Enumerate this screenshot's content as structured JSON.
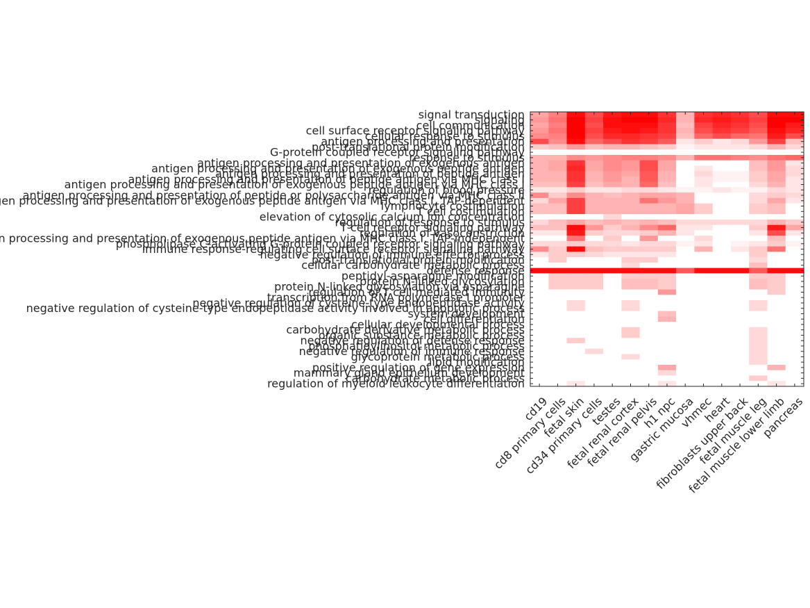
{
  "chart_data": {
    "type": "heatmap",
    "title": "",
    "xlabel": "",
    "ylabel": "",
    "color_low": "#ffffff",
    "color_high": "#ff0000",
    "value_range": [
      0,
      1
    ],
    "columns": [
      "cd19",
      "cd8 primary cells",
      "fetal skin",
      "cd34 primary cells",
      "testes",
      "fetal renal cortex",
      "fetal renal pelvis",
      "h1 npc",
      "gastric mucosa",
      "vhmec",
      "heart",
      "fibroblasts upper back",
      "fetal muscle leg",
      "fetal muscle lower limb",
      "pancreas"
    ],
    "rows": [
      "signal transduction",
      "signaling",
      "cell communication",
      "cell surface receptor signaling pathway",
      "cellular response to stimulus",
      "antigen processing and presentation",
      "post-translational protein modification",
      "G-protein coupled receptor signaling pathway",
      "response to stimulus",
      "antigen processing and presentation of exogenous antigen",
      "antigen processing and presentation of exogenous peptide antigen",
      "antigen processing and presentation of peptide antigen",
      "antigen processing and presentation of peptide antigen via MHC class I",
      "antigen processing and presentation of exogenous peptide antigen via MHC class I",
      "regulation of blood pressure",
      "antigen processing and presentation of peptide or polysaccharide antigen via MHC class II",
      "antigen processing and presentation of exogenous peptide antigen via MHC class I, TAP-dependent",
      "lymphocyte costimulation",
      "T cell costimulation",
      "elevation of cytosolic calcium ion concentration",
      "regulation of response to stimulus",
      "T cell receptor signaling pathway",
      "regulation of vasoconstriction",
      "antigen processing and presentation of exogenous peptide antigen via MHC class I, TAP-independent",
      "phospholipase C-activating G-protein coupled receptor signaling pathway",
      "immune response-regulating cell surface receptor signaling pathway",
      "negative regulation of immune effector process",
      "post-translational protein modification",
      "cellular carbohydrate metabolic process",
      "defense response",
      "peptidyl-asparagine modification",
      "protein N-linked glycosylation",
      "protein N-linked glycosylation via asparagine",
      "regulation of T cell mediated immunity",
      "transcription from RNA polymerase I promoter",
      "negative regulation of cysteine-type endopeptidase activity",
      "negative regulation of cysteine-type endopeptidase activity involved in apoptotic process",
      "system development",
      "cell differentiation",
      "cellular developmental process",
      "carbohydrate derivative metabolic process",
      "organic substance metabolic process",
      "negative regulation of defense response",
      "phosphatidylinositol metabolic process",
      "negative regulation of immune response",
      "glycoprotein metabolic process",
      "lipid modification",
      "positive regulation of gene expression",
      "mammary gland epithelium development",
      "carbohydrate metabolic process",
      "regulation of myeloid leukocyte differentiation"
    ],
    "values": [
      [
        0.35,
        0.5,
        0.95,
        0.7,
        0.9,
        0.95,
        0.95,
        0.8,
        0.3,
        0.8,
        0.85,
        0.8,
        0.7,
        0.95,
        0.95
      ],
      [
        0.4,
        0.55,
        1.0,
        0.75,
        0.95,
        1.0,
        1.0,
        0.85,
        0.3,
        0.85,
        0.9,
        0.85,
        0.75,
        1.0,
        1.0
      ],
      [
        0.35,
        0.5,
        1.0,
        0.7,
        0.95,
        0.95,
        0.95,
        0.8,
        0.25,
        0.75,
        0.85,
        0.8,
        0.7,
        1.0,
        0.9
      ],
      [
        0.4,
        0.55,
        1.0,
        0.75,
        0.9,
        0.95,
        0.9,
        0.8,
        0.3,
        0.7,
        0.8,
        0.75,
        0.65,
        0.95,
        0.85
      ],
      [
        0.45,
        0.5,
        1.0,
        0.7,
        0.85,
        0.85,
        0.8,
        0.75,
        0.25,
        0.6,
        0.7,
        0.6,
        0.55,
        0.9,
        0.7
      ],
      [
        0.7,
        0.45,
        0.95,
        0.6,
        0.7,
        0.8,
        0.75,
        0.65,
        0.1,
        0.2,
        0.1,
        0.15,
        0.4,
        0.75,
        0.25
      ],
      [
        0.2,
        0.25,
        0.4,
        0.25,
        0.3,
        0.3,
        0.25,
        0.2,
        0.05,
        0.1,
        0.1,
        0.1,
        0.15,
        0.3,
        0.15
      ],
      [
        0.0,
        0.0,
        0.0,
        0.0,
        0.0,
        0.0,
        0.0,
        0.0,
        0.0,
        0.0,
        0.0,
        0.0,
        0.0,
        0.0,
        0.0
      ],
      [
        0.3,
        0.3,
        0.45,
        0.4,
        0.45,
        0.5,
        0.5,
        0.45,
        0.3,
        0.55,
        0.55,
        0.5,
        0.45,
        0.55,
        0.6
      ],
      [
        0.3,
        0.35,
        0.8,
        0.35,
        0.45,
        0.4,
        0.7,
        0.35,
        0.0,
        0.0,
        0.0,
        0.0,
        0.25,
        0.4,
        0.1
      ],
      [
        0.3,
        0.35,
        0.85,
        0.35,
        0.45,
        0.4,
        0.7,
        0.35,
        0.0,
        0.1,
        0.0,
        0.0,
        0.25,
        0.4,
        0.15
      ],
      [
        0.3,
        0.3,
        0.8,
        0.3,
        0.4,
        0.35,
        0.65,
        0.3,
        0.0,
        0.15,
        0.05,
        0.05,
        0.2,
        0.35,
        0.15
      ],
      [
        0.3,
        0.3,
        0.8,
        0.3,
        0.4,
        0.3,
        0.65,
        0.3,
        0.0,
        0.1,
        0.05,
        0.05,
        0.2,
        0.35,
        0.1
      ],
      [
        0.25,
        0.25,
        0.75,
        0.25,
        0.35,
        0.3,
        0.6,
        0.25,
        0.0,
        0.1,
        0.0,
        0.0,
        0.15,
        0.3,
        0.1
      ],
      [
        0.1,
        0.1,
        0.2,
        0.1,
        0.1,
        0.15,
        0.15,
        0.1,
        0.05,
        0.05,
        0.1,
        0.05,
        0.05,
        0.15,
        0.1
      ],
      [
        0.45,
        0.2,
        0.45,
        0.3,
        0.25,
        0.3,
        0.35,
        0.35,
        0.3,
        0.0,
        0.0,
        0.0,
        0.15,
        0.2,
        0.15
      ],
      [
        0.15,
        0.35,
        0.75,
        0.3,
        0.3,
        0.3,
        0.55,
        0.4,
        0.3,
        0.0,
        0.0,
        0.0,
        0.15,
        0.35,
        0.1
      ],
      [
        0.25,
        0.25,
        0.75,
        0.3,
        0.3,
        0.3,
        0.3,
        0.3,
        0.35,
        0.2,
        0.0,
        0.0,
        0.2,
        0.25,
        0.0
      ],
      [
        0.25,
        0.25,
        0.75,
        0.3,
        0.3,
        0.3,
        0.3,
        0.3,
        0.35,
        0.2,
        0.0,
        0.0,
        0.2,
        0.25,
        0.0
      ],
      [
        0.0,
        0.0,
        0.0,
        0.0,
        0.15,
        0.0,
        0.0,
        0.0,
        0.0,
        0.0,
        0.0,
        0.0,
        0.0,
        0.0,
        0.0
      ],
      [
        0.15,
        0.25,
        0.35,
        0.25,
        0.3,
        0.25,
        0.3,
        0.25,
        0.15,
        0.15,
        0.15,
        0.15,
        0.15,
        0.3,
        0.2
      ],
      [
        0.25,
        0.25,
        0.95,
        0.4,
        0.2,
        0.3,
        0.45,
        0.6,
        0.1,
        0.1,
        0.0,
        0.0,
        0.2,
        0.9,
        0.35
      ],
      [
        0.1,
        0.1,
        0.9,
        0.2,
        0.15,
        0.15,
        0.2,
        0.3,
        0.1,
        0.0,
        0.0,
        0.0,
        0.1,
        0.7,
        0.1
      ],
      [
        0.0,
        0.0,
        0.55,
        0.0,
        0.2,
        0.0,
        0.4,
        0.0,
        0.0,
        0.15,
        0.0,
        0.0,
        0.0,
        0.25,
        0.0
      ],
      [
        0.15,
        0.15,
        0.2,
        0.15,
        0.15,
        0.1,
        0.15,
        0.15,
        0.05,
        0.1,
        0.0,
        0.05,
        0.1,
        0.2,
        0.05
      ],
      [
        0.45,
        0.2,
        0.95,
        0.25,
        0.2,
        0.2,
        0.2,
        0.2,
        0.0,
        0.3,
        0.0,
        0.1,
        0.2,
        0.55,
        0.0
      ],
      [
        0.1,
        0.2,
        0.2,
        0.15,
        0.1,
        0.1,
        0.1,
        0.1,
        0.0,
        0.0,
        0.0,
        0.0,
        0.2,
        0.0,
        0.0
      ],
      [
        0.0,
        0.2,
        0.0,
        0.0,
        0.0,
        0.2,
        0.2,
        0.0,
        0.0,
        0.0,
        0.0,
        0.0,
        0.15,
        0.0,
        0.0
      ],
      [
        0.0,
        0.0,
        0.0,
        0.0,
        0.0,
        0.15,
        0.0,
        0.0,
        0.0,
        0.0,
        0.0,
        0.0,
        0.25,
        0.0,
        0.0
      ],
      [
        0.95,
        0.95,
        0.95,
        0.95,
        0.95,
        0.95,
        0.95,
        0.95,
        0.65,
        0.95,
        0.95,
        0.95,
        0.65,
        0.95,
        0.95
      ],
      [
        0.0,
        0.2,
        0.2,
        0.2,
        0.0,
        0.2,
        0.2,
        0.2,
        0.0,
        0.0,
        0.0,
        0.0,
        0.2,
        0.2,
        0.0
      ],
      [
        0.0,
        0.2,
        0.2,
        0.2,
        0.0,
        0.25,
        0.25,
        0.2,
        0.0,
        0.0,
        0.0,
        0.0,
        0.25,
        0.2,
        0.0
      ],
      [
        0.0,
        0.2,
        0.2,
        0.2,
        0.0,
        0.25,
        0.25,
        0.2,
        0.0,
        0.0,
        0.0,
        0.0,
        0.25,
        0.2,
        0.0
      ],
      [
        0.0,
        0.0,
        0.0,
        0.0,
        0.0,
        0.0,
        0.0,
        0.4,
        0.0,
        0.0,
        0.0,
        0.0,
        0.0,
        0.2,
        0.0
      ],
      [
        0.0,
        0.0,
        0.0,
        0.0,
        0.0,
        0.0,
        0.0,
        0.0,
        0.0,
        0.0,
        0.0,
        0.0,
        0.0,
        0.0,
        0.0
      ],
      [
        0.0,
        0.0,
        0.15,
        0.0,
        0.0,
        0.15,
        0.0,
        0.0,
        0.0,
        0.0,
        0.0,
        0.0,
        0.15,
        0.0,
        0.0
      ],
      [
        0.0,
        0.0,
        0.15,
        0.0,
        0.0,
        0.15,
        0.0,
        0.0,
        0.0,
        0.0,
        0.0,
        0.0,
        0.15,
        0.0,
        0.0
      ],
      [
        0.0,
        0.0,
        0.0,
        0.0,
        0.0,
        0.0,
        0.0,
        0.25,
        0.0,
        0.0,
        0.0,
        0.0,
        0.0,
        0.0,
        0.0
      ],
      [
        0.0,
        0.0,
        0.0,
        0.0,
        0.0,
        0.0,
        0.0,
        0.3,
        0.0,
        0.0,
        0.0,
        0.0,
        0.0,
        0.0,
        0.0
      ],
      [
        0.0,
        0.0,
        0.0,
        0.0,
        0.0,
        0.0,
        0.0,
        0.0,
        0.0,
        0.0,
        0.0,
        0.0,
        0.0,
        0.0,
        0.0
      ],
      [
        0.0,
        0.0,
        0.0,
        0.0,
        0.0,
        0.2,
        0.0,
        0.0,
        0.0,
        0.0,
        0.0,
        0.0,
        0.15,
        0.0,
        0.0
      ],
      [
        0.0,
        0.0,
        0.0,
        0.0,
        0.0,
        0.2,
        0.0,
        0.0,
        0.0,
        0.0,
        0.0,
        0.0,
        0.15,
        0.0,
        0.0
      ],
      [
        0.0,
        0.0,
        0.2,
        0.0,
        0.0,
        0.0,
        0.0,
        0.0,
        0.0,
        0.0,
        0.0,
        0.0,
        0.15,
        0.0,
        0.0
      ],
      [
        0.0,
        0.0,
        0.0,
        0.0,
        0.0,
        0.0,
        0.0,
        0.0,
        0.0,
        0.0,
        0.0,
        0.0,
        0.15,
        0.0,
        0.0
      ],
      [
        0.0,
        0.0,
        0.0,
        0.15,
        0.0,
        0.0,
        0.0,
        0.0,
        0.0,
        0.0,
        0.0,
        0.0,
        0.15,
        0.0,
        0.0
      ],
      [
        0.0,
        0.0,
        0.0,
        0.0,
        0.0,
        0.15,
        0.0,
        0.0,
        0.0,
        0.0,
        0.0,
        0.0,
        0.15,
        0.0,
        0.0
      ],
      [
        0.0,
        0.0,
        0.0,
        0.0,
        0.0,
        0.0,
        0.0,
        0.0,
        0.0,
        0.0,
        0.0,
        0.0,
        0.15,
        0.0,
        0.0
      ],
      [
        0.0,
        0.0,
        0.0,
        0.0,
        0.0,
        0.0,
        0.0,
        0.35,
        0.0,
        0.0,
        0.0,
        0.0,
        0.0,
        0.3,
        0.0
      ],
      [
        0.0,
        0.0,
        0.0,
        0.0,
        0.0,
        0.0,
        0.0,
        0.15,
        0.0,
        0.0,
        0.0,
        0.0,
        0.0,
        0.0,
        0.0
      ],
      [
        0.0,
        0.0,
        0.0,
        0.0,
        0.0,
        0.0,
        0.0,
        0.0,
        0.0,
        0.0,
        0.0,
        0.0,
        0.2,
        0.0,
        0.0
      ],
      [
        0.0,
        0.0,
        0.1,
        0.0,
        0.0,
        0.0,
        0.0,
        0.1,
        0.0,
        0.0,
        0.0,
        0.0,
        0.0,
        0.1,
        0.0
      ]
    ]
  }
}
